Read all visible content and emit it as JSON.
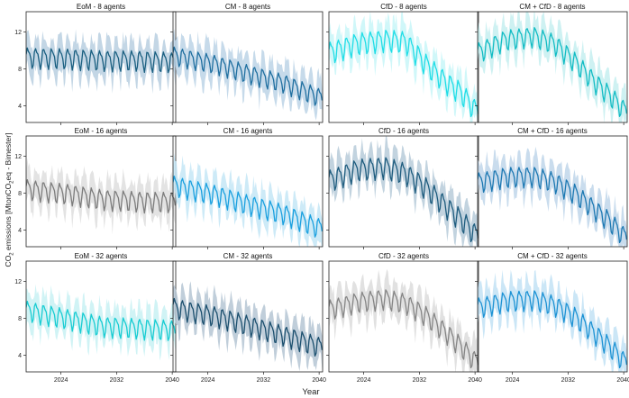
{
  "figure": {
    "xlabel": "Year",
    "ylabel_main": "CO",
    "ylabel_sub1": "2",
    "ylabel_mid": " emissions [MtonCO",
    "ylabel_sub2": "2",
    "ylabel_end": "eq - Bimester]"
  },
  "chart_data": [
    {
      "type": "line",
      "title": "EoM - 8 agents",
      "row": 0,
      "col": 0,
      "color": "#1a5f80",
      "band_color": "#b9cfe0",
      "x_range": [
        2019,
        2040.5
      ],
      "ylim": [
        2.2,
        14.2
      ],
      "xticks": [
        2024,
        2032,
        2040
      ],
      "yticks": [
        4,
        8,
        12
      ],
      "x_tick_labels": [],
      "y_tick_labels": [
        "4",
        "8",
        "12"
      ],
      "trend": {
        "x": [
          2019,
          2025,
          2030,
          2035,
          2040
        ],
        "y": [
          9.3,
          9.2,
          9.0,
          9.0,
          8.8
        ]
      },
      "seasonal_amplitude": 1.2,
      "period_years": 1.15
    },
    {
      "type": "line",
      "title": "CM - 8 agents",
      "row": 0,
      "col": 1,
      "color": "#1f6fa0",
      "band_color": "#bcd3e6",
      "x_range": [
        2019,
        2040.5
      ],
      "ylim": [
        2.2,
        14.2
      ],
      "xticks": [
        2024,
        2032,
        2040
      ],
      "yticks": [
        4,
        8,
        12
      ],
      "x_tick_labels": [],
      "y_tick_labels": [],
      "trend": {
        "x": [
          2019,
          2025,
          2030,
          2035,
          2040
        ],
        "y": [
          9.5,
          8.6,
          7.5,
          6.5,
          5.0
        ]
      },
      "seasonal_amplitude": 1.1,
      "period_years": 1.15
    },
    {
      "type": "line",
      "title": "CfD - 8 agents",
      "row": 0,
      "col": 2,
      "color": "#1fdde6",
      "band_color": "#c8f6f8",
      "x_range": [
        2019,
        2040.5
      ],
      "ylim": [
        2.2,
        14.2
      ],
      "xticks": [
        2024,
        2032,
        2040
      ],
      "yticks": [
        4,
        8,
        12
      ],
      "x_tick_labels": [],
      "y_tick_labels": [],
      "trend": {
        "x": [
          2019,
          2023,
          2027,
          2030,
          2033,
          2036,
          2038,
          2040
        ],
        "y": [
          9.8,
          10.8,
          11.2,
          11.0,
          8.5,
          6.5,
          5.5,
          3.6
        ]
      },
      "seasonal_amplitude": 1.3,
      "period_years": 1.15
    },
    {
      "type": "line",
      "title": "CM + CfD - 8 agents",
      "row": 0,
      "col": 3,
      "color": "#12bcc4",
      "band_color": "#c5eef0",
      "x_range": [
        2019,
        2040.5
      ],
      "ylim": [
        2.2,
        14.2
      ],
      "xticks": [
        2024,
        2032,
        2040
      ],
      "yticks": [
        4,
        8,
        12
      ],
      "x_tick_labels": [],
      "y_tick_labels": [],
      "trend": {
        "x": [
          2019,
          2023,
          2027,
          2030,
          2033,
          2036,
          2038,
          2040
        ],
        "y": [
          9.8,
          11.2,
          11.6,
          10.8,
          8.8,
          6.5,
          5.2,
          3.6
        ]
      },
      "seasonal_amplitude": 1.2,
      "period_years": 1.15
    },
    {
      "type": "line",
      "title": "EoM - 16 agents",
      "row": 1,
      "col": 0,
      "color": "#7c7c7c",
      "band_color": "#dedede",
      "x_range": [
        2019,
        2040.5
      ],
      "ylim": [
        2.2,
        14.2
      ],
      "xticks": [
        2024,
        2032,
        2040
      ],
      "yticks": [
        4,
        8,
        12
      ],
      "x_tick_labels": [],
      "y_tick_labels": [
        "4",
        "8",
        "12"
      ],
      "trend": {
        "x": [
          2019,
          2025,
          2030,
          2035,
          2040
        ],
        "y": [
          8.5,
          8.0,
          7.4,
          7.2,
          7.1
        ]
      },
      "seasonal_amplitude": 1.2,
      "period_years": 1.15
    },
    {
      "type": "line",
      "title": "CM - 16 agents",
      "row": 1,
      "col": 1,
      "color": "#1aa0df",
      "band_color": "#c4e6f6",
      "x_range": [
        2019,
        2040.5
      ],
      "ylim": [
        2.2,
        14.2
      ],
      "xticks": [
        2024,
        2032,
        2040
      ],
      "yticks": [
        4,
        8,
        12
      ],
      "x_tick_labels": [],
      "y_tick_labels": [],
      "trend": {
        "x": [
          2019,
          2025,
          2030,
          2035,
          2040
        ],
        "y": [
          8.9,
          7.9,
          6.8,
          5.8,
          4.3
        ]
      },
      "seasonal_amplitude": 1.2,
      "period_years": 1.15
    },
    {
      "type": "line",
      "title": "CfD - 16 agents",
      "row": 1,
      "col": 2,
      "color": "#1e5c7e",
      "band_color": "#b7cbd9",
      "x_range": [
        2019,
        2040.5
      ],
      "ylim": [
        2.2,
        14.2
      ],
      "xticks": [
        2024,
        2032,
        2040
      ],
      "yticks": [
        4,
        8,
        12
      ],
      "x_tick_labels": [],
      "y_tick_labels": [],
      "trend": {
        "x": [
          2019,
          2023,
          2027,
          2030,
          2033,
          2036,
          2038,
          2040
        ],
        "y": [
          9.4,
          10.6,
          10.9,
          10.2,
          8.6,
          6.5,
          5.2,
          3.6
        ]
      },
      "seasonal_amplitude": 1.3,
      "period_years": 1.15
    },
    {
      "type": "line",
      "title": "CM + CfD - 16 agents",
      "row": 1,
      "col": 3,
      "color": "#1c78b2",
      "band_color": "#bfd6ea",
      "x_range": [
        2019,
        2040.5
      ],
      "ylim": [
        2.2,
        14.2
      ],
      "xticks": [
        2024,
        2032,
        2040
      ],
      "yticks": [
        4,
        8,
        12
      ],
      "x_tick_labels": [],
      "y_tick_labels": [],
      "trend": {
        "x": [
          2019,
          2023,
          2027,
          2030,
          2033,
          2036,
          2038,
          2040
        ],
        "y": [
          9.2,
          9.8,
          9.9,
          9.3,
          8.0,
          6.2,
          5.0,
          3.4
        ]
      },
      "seasonal_amplitude": 1.2,
      "period_years": 1.15
    },
    {
      "type": "line",
      "title": "EoM - 32 agents",
      "row": 2,
      "col": 0,
      "color": "#18ccd2",
      "band_color": "#c8f1f3",
      "x_range": [
        2019,
        2040.5
      ],
      "ylim": [
        2.2,
        14.2
      ],
      "xticks": [
        2024,
        2032,
        2040
      ],
      "yticks": [
        4,
        8,
        12
      ],
      "x_tick_labels": [
        "2024",
        "2032",
        "2040"
      ],
      "y_tick_labels": [
        "4",
        "8",
        "12"
      ],
      "trend": {
        "x": [
          2019,
          2025,
          2030,
          2035,
          2040
        ],
        "y": [
          8.9,
          8.0,
          7.2,
          7.0,
          6.8
        ]
      },
      "seasonal_amplitude": 1.2,
      "period_years": 1.15
    },
    {
      "type": "line",
      "title": "CM - 32 agents",
      "row": 2,
      "col": 1,
      "color": "#1b4f6e",
      "band_color": "#b5c6d3",
      "x_range": [
        2019,
        2040.5
      ],
      "ylim": [
        2.2,
        14.2
      ],
      "xticks": [
        2024,
        2032,
        2040
      ],
      "yticks": [
        4,
        8,
        12
      ],
      "x_tick_labels": [
        "2024",
        "2032",
        "2040"
      ],
      "y_tick_labels": [],
      "trend": {
        "x": [
          2019,
          2025,
          2030,
          2035,
          2040
        ],
        "y": [
          9.2,
          8.3,
          7.3,
          6.2,
          5.0
        ]
      },
      "seasonal_amplitude": 1.2,
      "period_years": 1.15
    },
    {
      "type": "line",
      "title": "CfD - 32 agents",
      "row": 2,
      "col": 2,
      "color": "#858585",
      "band_color": "#dcdcdc",
      "x_range": [
        2019,
        2040.5
      ],
      "ylim": [
        2.2,
        14.2
      ],
      "xticks": [
        2024,
        2032,
        2040
      ],
      "yticks": [
        4,
        8,
        12
      ],
      "x_tick_labels": [
        "2024",
        "2032",
        "2040"
      ],
      "y_tick_labels": [],
      "trend": {
        "x": [
          2019,
          2023,
          2027,
          2030,
          2033,
          2036,
          2038,
          2040
        ],
        "y": [
          9.0,
          9.8,
          10.2,
          9.7,
          8.3,
          6.4,
          5.0,
          3.4
        ]
      },
      "seasonal_amplitude": 1.2,
      "period_years": 1.15
    },
    {
      "type": "line",
      "title": "CM + CfD - 32 agents",
      "row": 2,
      "col": 3,
      "color": "#1c92d4",
      "band_color": "#c2e2f5",
      "x_range": [
        2019,
        2040.5
      ],
      "ylim": [
        2.2,
        14.2
      ],
      "xticks": [
        2024,
        2032,
        2040
      ],
      "yticks": [
        4,
        8,
        12
      ],
      "x_tick_labels": [
        "2024",
        "2032",
        "2040"
      ],
      "y_tick_labels": [],
      "trend": {
        "x": [
          2019,
          2023,
          2027,
          2030,
          2033,
          2036,
          2038,
          2040
        ],
        "y": [
          9.2,
          9.9,
          10.1,
          9.5,
          8.2,
          6.3,
          5.0,
          3.4
        ]
      },
      "seasonal_amplitude": 1.2,
      "period_years": 1.15
    }
  ]
}
